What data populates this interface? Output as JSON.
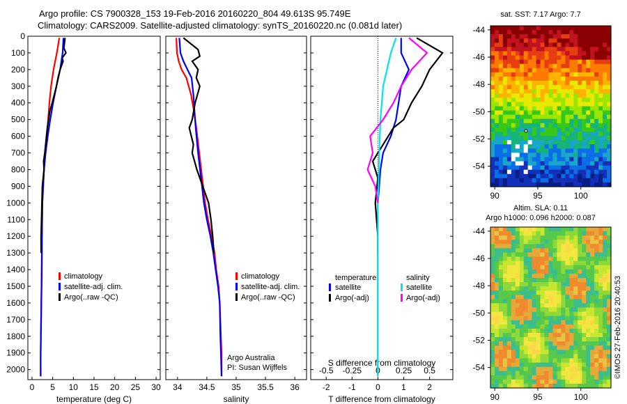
{
  "header": {
    "line1": "Argo profile: CS 7900328_153 19-Feb-2016 20160220_804 49.613S 95.749E",
    "line2": "Climatology: CARS2009. Satellite-adjusted climatology: synTS_20160220.nc (0.081d later)"
  },
  "colors": {
    "climatology": "#ff0000",
    "satellite": "#0000ff",
    "argo": "#000000",
    "cyan": "#00e5e5",
    "magenta": "#ff00ff"
  },
  "chart_data": [
    {
      "type": "line",
      "xlabel": "temperature (deg C)",
      "xlim": [
        -1,
        31
      ],
      "xticks": [
        0,
        5,
        10,
        15,
        20,
        25,
        30
      ],
      "ylim": [
        0,
        2060
      ],
      "yticks": [
        0,
        100,
        200,
        300,
        400,
        500,
        600,
        700,
        800,
        900,
        1000,
        1100,
        1200,
        1300,
        1400,
        1500,
        1600,
        1700,
        1800,
        1900,
        2000
      ],
      "legend": [
        "climatology",
        "satellite-adj. clim.",
        "Argo(..raw -QC)"
      ],
      "series": [
        {
          "name": "climatology",
          "color": "#ff0000",
          "x": [
            6.6,
            6.0,
            5.2,
            4.6,
            4.2,
            3.9,
            3.6,
            3.2,
            2.9,
            2.7,
            2.5,
            2.4,
            2.35,
            2.3,
            2.25,
            2.2,
            2.15,
            2.1,
            2.1
          ],
          "y": [
            10,
            100,
            200,
            300,
            400,
            500,
            600,
            700,
            800,
            900,
            1000,
            1200,
            1400,
            1500,
            1600,
            1700,
            1800,
            1900,
            2040
          ]
        },
        {
          "name": "satellite-adj. clim.",
          "color": "#0000ff",
          "x": [
            7.6,
            7.4,
            6.8,
            5.9,
            5.1,
            4.4,
            3.8,
            3.3,
            2.9,
            2.7,
            2.5,
            2.4,
            2.35,
            2.3,
            2.25,
            2.2,
            2.15,
            2.1,
            2.1
          ],
          "y": [
            10,
            100,
            200,
            300,
            400,
            500,
            600,
            700,
            800,
            900,
            1000,
            1200,
            1400,
            1500,
            1600,
            1700,
            1800,
            1900,
            2040
          ]
        },
        {
          "name": "Argo(..raw -QC)",
          "color": "#000000",
          "x": [
            8.0,
            7.7,
            8.2,
            7.3,
            7.5,
            6.8,
            6.3,
            5.9,
            5.4,
            4.9,
            4.3,
            3.7,
            3.5,
            3.1,
            2.8,
            2.9,
            2.7,
            2.5,
            2.4,
            2.3,
            2.2,
            2.2
          ],
          "y": [
            10,
            70,
            100,
            130,
            150,
            200,
            250,
            300,
            350,
            400,
            450,
            550,
            600,
            700,
            750,
            800,
            850,
            900,
            1000,
            1100,
            1200,
            1300
          ]
        }
      ]
    },
    {
      "type": "line",
      "xlabel": "salinity",
      "xlim": [
        33.8,
        36.2
      ],
      "xticks": [
        34,
        34.5,
        35,
        35.5,
        36
      ],
      "xticklabels": [
        "34",
        "34.5",
        "35",
        "35.5",
        "36"
      ],
      "ylim": [
        0,
        2060
      ],
      "legend": [
        "climatology",
        "satellite-adj. clim.",
        "Argo(..raw -QC)"
      ],
      "annotation": [
        "Argo Australia",
        "PI: Susan Wijffels"
      ],
      "series": [
        {
          "name": "climatology",
          "color": "#ff0000",
          "x": [
            33.98,
            33.99,
            34.02,
            34.07,
            34.15,
            34.23,
            34.28,
            34.32,
            34.37,
            34.42,
            34.47,
            34.52,
            34.58,
            34.63,
            34.66,
            34.7,
            34.72,
            34.74,
            34.75,
            34.75
          ],
          "y": [
            10,
            100,
            150,
            200,
            250,
            350,
            450,
            550,
            700,
            850,
            1000,
            1100,
            1200,
            1300,
            1400,
            1500,
            1600,
            1800,
            1900,
            2040
          ]
        },
        {
          "name": "satellite-adj. clim.",
          "color": "#0000ff",
          "x": [
            34.03,
            34.05,
            34.1,
            34.17,
            34.24,
            34.27,
            34.29,
            34.31,
            34.35,
            34.4,
            34.45,
            34.5,
            34.56,
            34.61,
            34.65,
            34.69,
            34.72,
            34.73,
            34.74,
            34.75
          ],
          "y": [
            10,
            100,
            150,
            200,
            250,
            350,
            450,
            550,
            700,
            850,
            1000,
            1100,
            1200,
            1300,
            1400,
            1500,
            1600,
            1800,
            1900,
            2040
          ]
        },
        {
          "name": "Argo(..raw -QC)",
          "color": "#000000",
          "x": [
            34.1,
            34.35,
            34.38,
            34.25,
            34.35,
            34.32,
            34.38,
            34.3,
            34.25,
            34.2,
            34.27,
            34.25,
            34.33,
            34.38,
            34.43,
            34.48,
            34.53,
            34.57,
            34.6,
            34.62
          ],
          "y": [
            10,
            80,
            120,
            150,
            200,
            250,
            300,
            400,
            500,
            550,
            650,
            700,
            800,
            850,
            900,
            950,
            1000,
            1100,
            1200,
            1300
          ]
        }
      ]
    },
    {
      "type": "line",
      "xlabel": "T difference from climatology",
      "xlabel_top": "S difference from climatology",
      "xlim": [
        -2.6,
        2.9
      ],
      "xticks": [
        -2,
        -1,
        0,
        1,
        2
      ],
      "top_xticks": [
        -0.5,
        -0.25,
        0,
        0.25,
        0.5
      ],
      "ylim": [
        0,
        2060
      ],
      "legend_temperature": {
        "title": "temperature",
        "items": [
          "satellite",
          "Argo(-adj)"
        ]
      },
      "legend_salinity": {
        "title": "salinity",
        "items": [
          "satellite",
          "Argo(-adj)"
        ]
      },
      "series": [
        {
          "name": "satellite",
          "color": "#0000ff",
          "x": [
            0.9,
            0.9,
            1.2,
            0.9,
            0.8,
            0.7,
            0.5,
            0.2,
            0.1,
            0.05,
            0,
            0,
            0,
            0,
            0,
            0
          ],
          "y": [
            10,
            100,
            200,
            300,
            400,
            500,
            600,
            700,
            800,
            900,
            1000,
            1200,
            1400,
            1600,
            1800,
            2040
          ]
        },
        {
          "name": "Argo(-adj)",
          "color": "#000000",
          "x": [
            1.5,
            2.5,
            2.0,
            1.7,
            1.3,
            1.0,
            0.6,
            0.2,
            -0.2,
            0,
            -0.1,
            0,
            0
          ],
          "y": [
            10,
            100,
            200,
            300,
            400,
            500,
            550,
            650,
            750,
            850,
            1000,
            1200,
            1300
          ]
        },
        {
          "name": "satellite",
          "color": "#00e5e5",
          "x": [
            0.7,
            0.5,
            0.2,
            0.1,
            0.05,
            0.02,
            0,
            0,
            0,
            0,
            0,
            0
          ],
          "y": [
            10,
            100,
            300,
            500,
            700,
            900,
            1000,
            1200,
            1400,
            1600,
            1800,
            2040
          ]
        },
        {
          "name": "Argo(-adj)",
          "color": "#ff00ff",
          "x": [
            1.2,
            1.9,
            1.3,
            0.9,
            0.6,
            0.2,
            -0.3,
            -0.2,
            -0.4,
            -0.1,
            0
          ],
          "y": [
            10,
            100,
            200,
            300,
            400,
            500,
            600,
            700,
            800,
            900,
            1000
          ]
        }
      ]
    },
    {
      "type": "heatmap",
      "title": "sat. SST: 7.17 Argo: 7.7",
      "xticks": [
        90,
        95,
        100
      ],
      "yticks": [
        -44,
        -46,
        -48,
        -50,
        -52,
        -54
      ],
      "xlim": [
        89.5,
        103.5
      ],
      "ylim": [
        -55.5,
        -43.7
      ]
    },
    {
      "type": "heatmap",
      "title_line1": "Altim. SLA: 0.11",
      "title_line2": "Argo h1000: 0.096 h2000: 0.087",
      "xticks": [
        90,
        95,
        100
      ],
      "yticks": [
        -44,
        -46,
        -48,
        -50,
        -52,
        -54
      ],
      "xlim": [
        89.5,
        103.5
      ],
      "ylim": [
        -55.5,
        -43.7
      ]
    }
  ],
  "credit": "©IMOS 27-Feb-2016 20:40:53"
}
